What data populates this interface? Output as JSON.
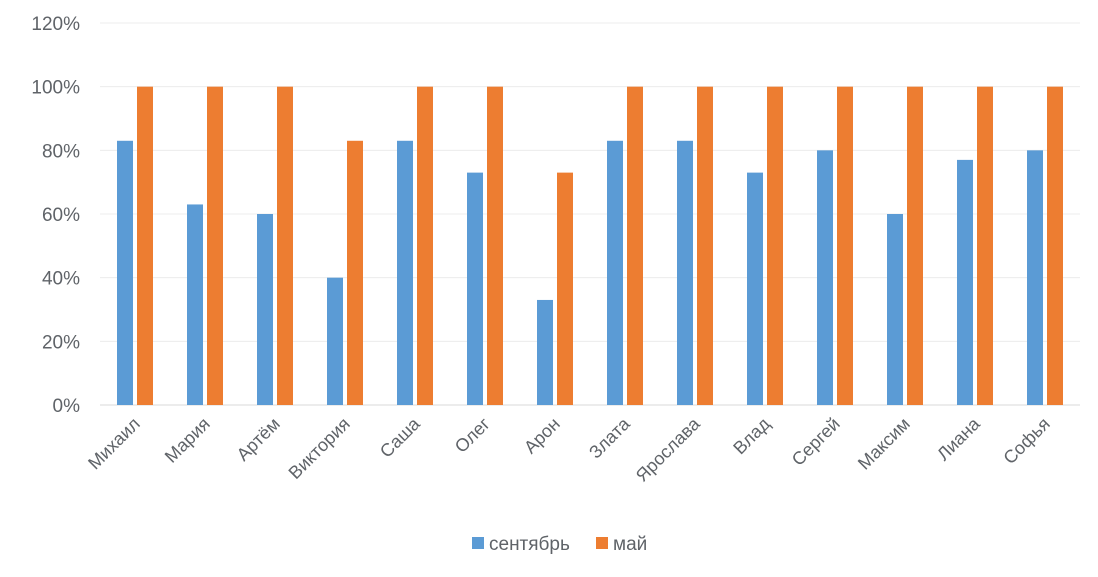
{
  "chart_data": {
    "type": "bar",
    "title": "",
    "xlabel": "",
    "ylabel": "",
    "ylim": [
      0,
      1.2
    ],
    "y_ticks": [
      0,
      0.2,
      0.4,
      0.6,
      0.8,
      1.0,
      1.2
    ],
    "y_tick_labels": [
      "0%",
      "20%",
      "40%",
      "60%",
      "80%",
      "100%",
      "120%"
    ],
    "grid": true,
    "legend_position": "bottom",
    "categories": [
      "Михаил",
      "Мария",
      "Артём",
      "Виктория",
      "Саша",
      "Олег",
      "Арон",
      "Злата",
      "Ярослава",
      "Влад",
      "Сергей",
      "Максим",
      "Лиана",
      "Софья"
    ],
    "series": [
      {
        "name": "сентябрь",
        "color": "#5b9bd5",
        "values": [
          0.83,
          0.63,
          0.6,
          0.4,
          0.83,
          0.73,
          0.33,
          0.83,
          0.83,
          0.73,
          0.8,
          0.6,
          0.77,
          0.8
        ]
      },
      {
        "name": "май",
        "color": "#ed7d31",
        "values": [
          1.0,
          1.0,
          1.0,
          0.83,
          1.0,
          1.0,
          0.73,
          1.0,
          1.0,
          1.0,
          1.0,
          1.0,
          1.0,
          1.0
        ]
      }
    ]
  }
}
